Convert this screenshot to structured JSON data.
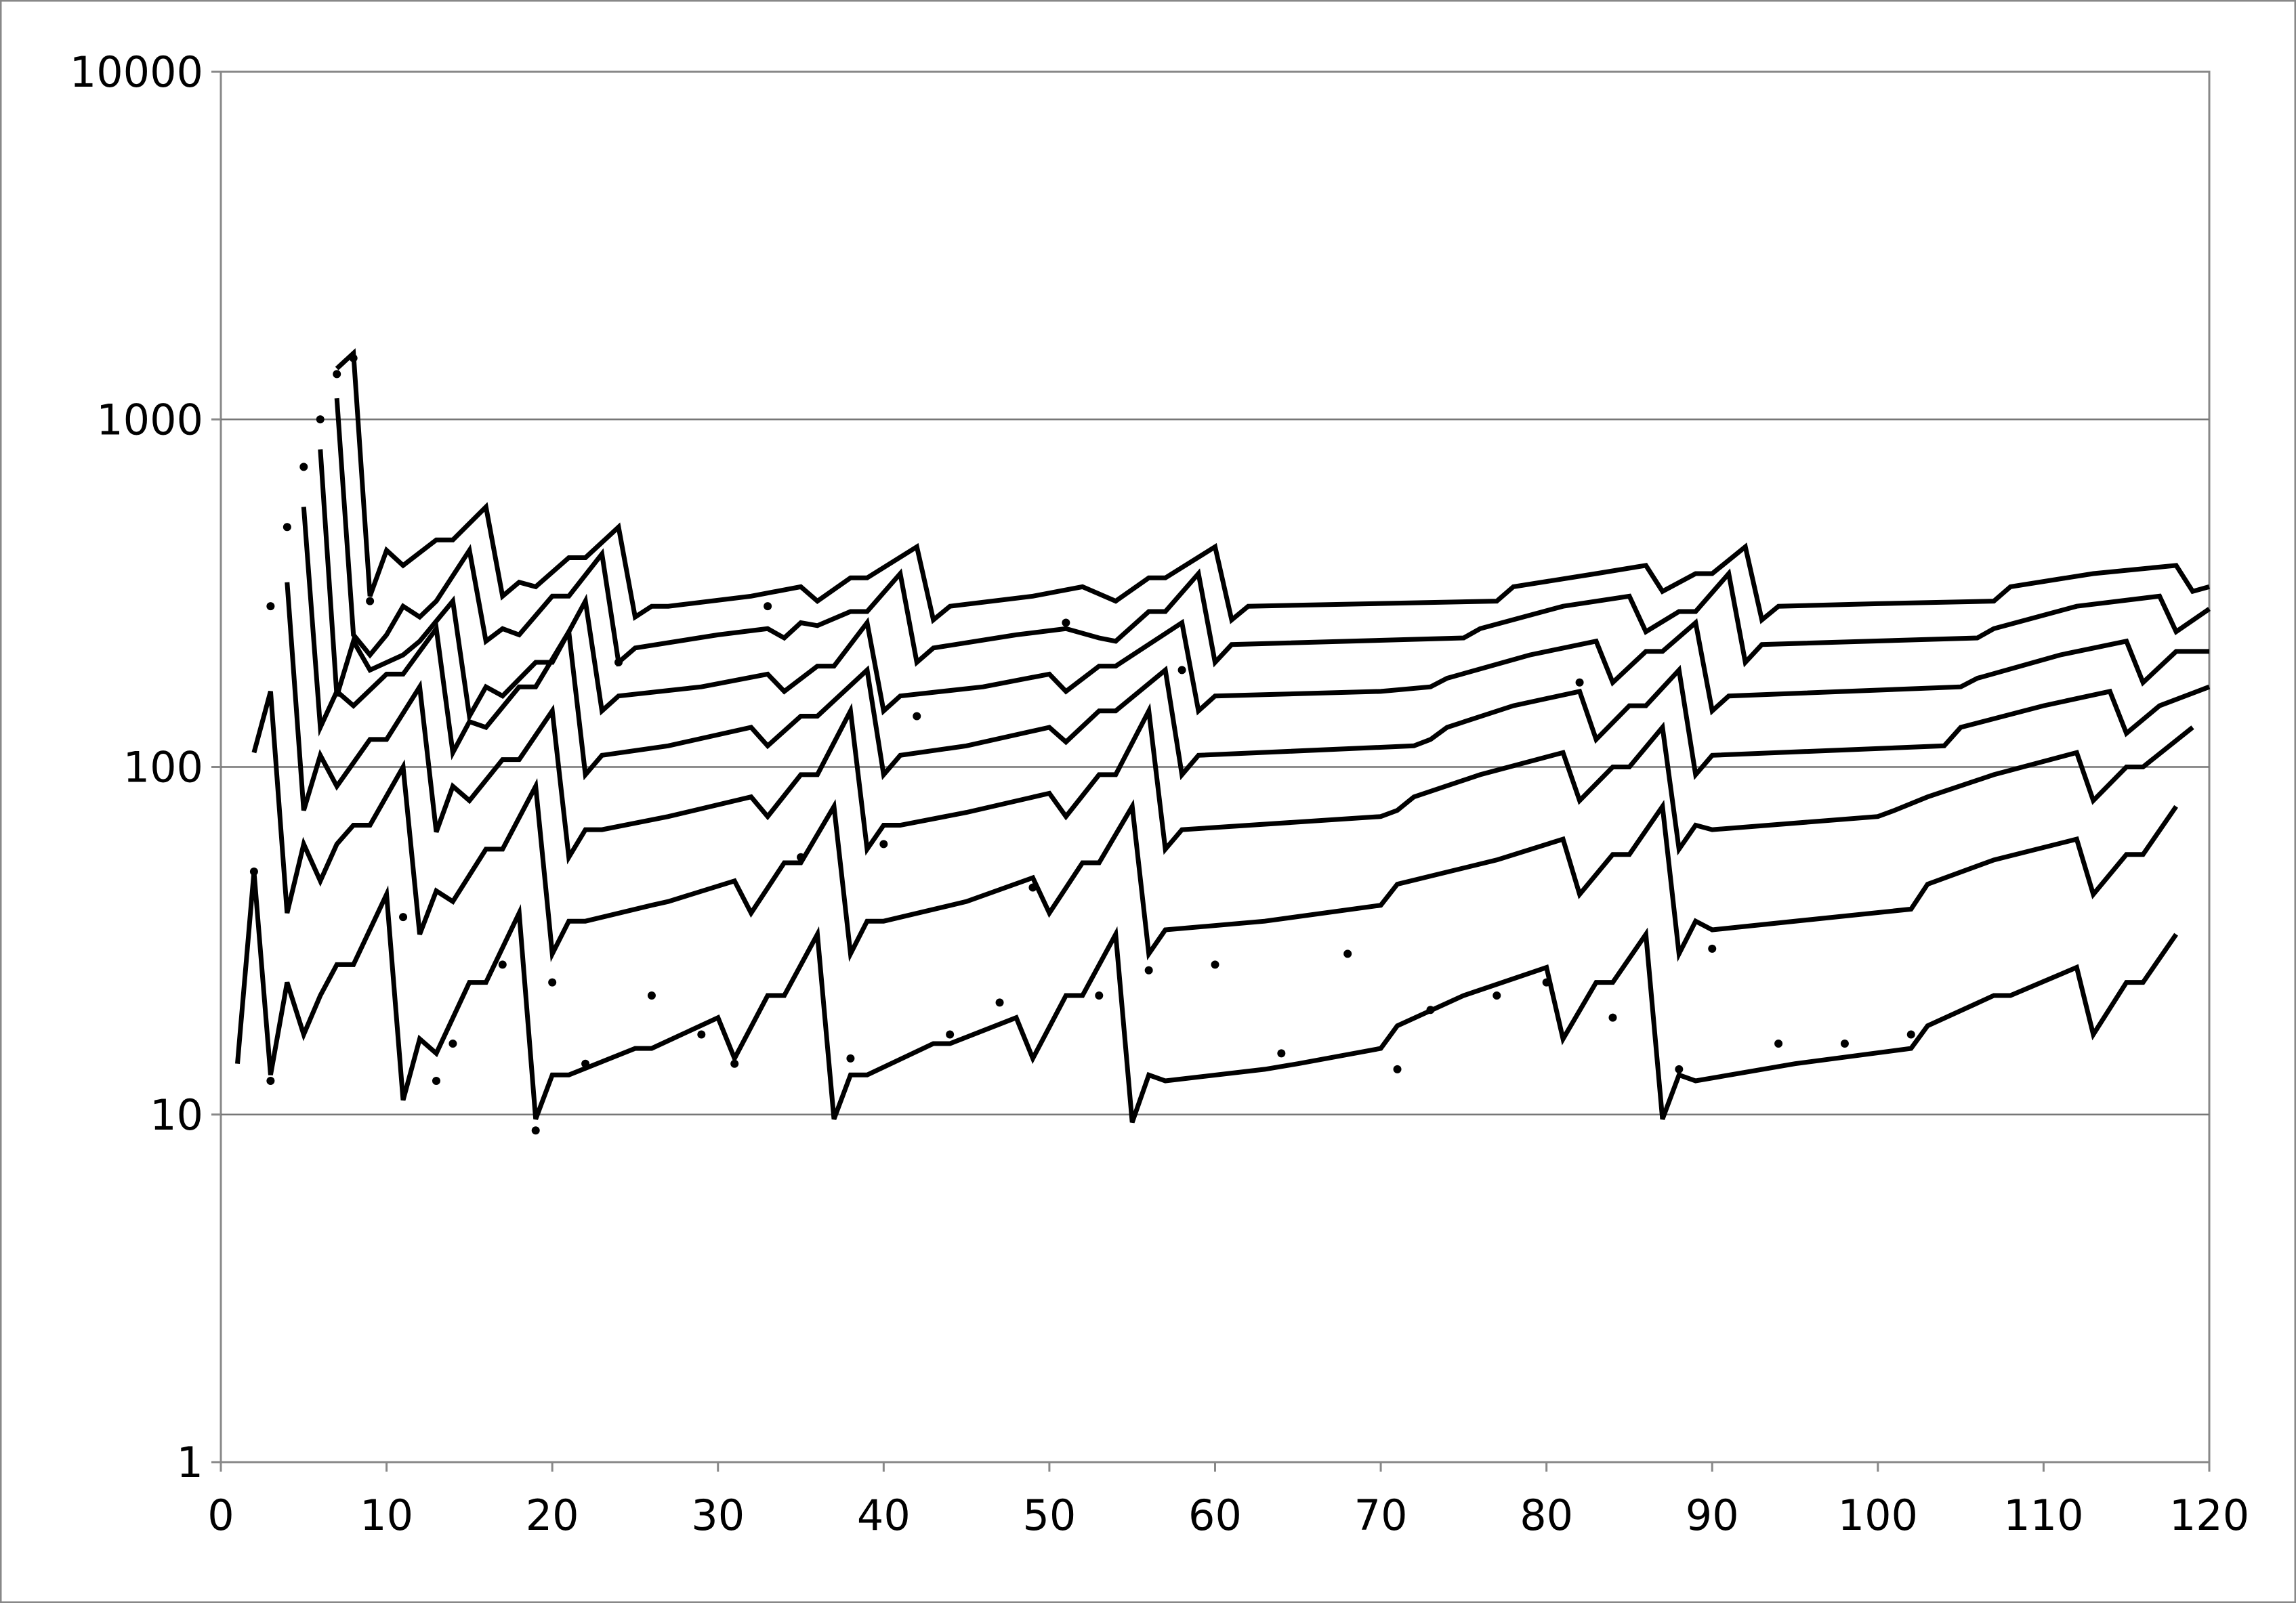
{
  "chart_data": {
    "type": "line",
    "log_y": true,
    "grid": true,
    "xlim": [
      0,
      120
    ],
    "xticks": [
      0,
      10,
      20,
      30,
      40,
      50,
      60,
      70,
      80,
      90,
      100,
      110,
      120
    ],
    "ylim": [
      1,
      10000
    ],
    "yticks": [
      1,
      10,
      100,
      1000,
      10000
    ],
    "series": [
      {
        "color": "#000000",
        "style": "line",
        "x": [
          1,
          2,
          3,
          4,
          5,
          6,
          7,
          8,
          10,
          11,
          12,
          13,
          15,
          16,
          18,
          19,
          20,
          21,
          25,
          26,
          30,
          31,
          33,
          34,
          36,
          37,
          38,
          39,
          43,
          44,
          48,
          49,
          51,
          52,
          54,
          55,
          56,
          57,
          63,
          65,
          70,
          71,
          75,
          80,
          81,
          83,
          84,
          86,
          87,
          88,
          89,
          95,
          102,
          103,
          107,
          108,
          112,
          113,
          115,
          116,
          118
        ],
        "values": [
          14,
          50,
          13,
          24,
          17,
          22,
          27,
          27,
          43,
          11,
          16.5,
          15,
          24,
          24,
          38,
          9.7,
          13,
          13,
          15.5,
          15.5,
          19,
          14.5,
          22,
          22,
          33,
          9.7,
          13,
          13,
          16,
          16,
          19,
          14.5,
          22,
          22,
          33,
          9.5,
          13,
          12.5,
          13.5,
          14,
          15.5,
          18,
          22,
          26.5,
          16.5,
          24,
          24,
          33,
          9.7,
          13,
          12.5,
          14,
          15.5,
          18,
          22,
          22,
          26.5,
          17,
          24,
          24,
          33
        ]
      },
      {
        "color": "#000000",
        "style": "line",
        "x": [
          2,
          3,
          4,
          5,
          6,
          7,
          8,
          9,
          11,
          12,
          13,
          14,
          16,
          17,
          19,
          20,
          21,
          22,
          26,
          27,
          31,
          32,
          34,
          35,
          37,
          38,
          39,
          40,
          45,
          49,
          50,
          52,
          53,
          55,
          56,
          57,
          63,
          70,
          71,
          77,
          81,
          82,
          84,
          85,
          87,
          88,
          89,
          90,
          102,
          103,
          107,
          112,
          113,
          115,
          116,
          118
        ],
        "values": [
          110,
          165,
          38,
          60,
          47,
          60,
          68,
          68,
          100,
          33,
          44,
          41,
          58,
          58,
          88,
          29,
          36,
          36,
          40,
          41,
          47,
          38,
          53,
          53,
          77,
          29,
          36,
          36,
          41,
          48,
          38,
          53,
          53,
          77,
          29,
          34,
          36,
          40,
          46,
          54,
          62,
          43,
          56,
          56,
          77,
          29,
          36,
          34,
          39,
          46,
          54,
          62,
          43,
          56,
          56,
          77
        ]
      },
      {
        "color": "#000000",
        "style": "line",
        "x": [
          4,
          5,
          6,
          7,
          9,
          10,
          12,
          13,
          14,
          15,
          17,
          18,
          20,
          21,
          22,
          23,
          27,
          32,
          33,
          35,
          36,
          38,
          39,
          40,
          41,
          45,
          50,
          51,
          53,
          54,
          56,
          57,
          58,
          70,
          71,
          72,
          76,
          81,
          82,
          84,
          85,
          87,
          88,
          89,
          90,
          100,
          101,
          103,
          107,
          112,
          113,
          115,
          116,
          119
        ],
        "values": [
          340,
          75,
          108,
          88,
          120,
          120,
          170,
          65,
          88,
          80,
          105,
          105,
          145,
          55,
          66,
          66,
          72,
          82,
          72,
          95,
          95,
          145,
          58,
          68,
          68,
          74,
          84,
          72,
          95,
          95,
          145,
          58,
          66,
          72,
          75,
          82,
          95,
          110,
          80,
          100,
          100,
          130,
          58,
          68,
          66,
          72,
          75,
          82,
          95,
          110,
          80,
          100,
          100,
          130
        ]
      },
      {
        "color": "#000000",
        "style": "line",
        "x": [
          5,
          6,
          7,
          8,
          10,
          11,
          13,
          14,
          15,
          16,
          18,
          19,
          21,
          22,
          23,
          27,
          32,
          33,
          35,
          36,
          39,
          40,
          41,
          45,
          50,
          51,
          53,
          54,
          57,
          58,
          59,
          72,
          73,
          74,
          78,
          82,
          83,
          85,
          86,
          88,
          89,
          90,
          104,
          105,
          110,
          114,
          115,
          117,
          120
        ],
        "values": [
          560,
          130,
          165,
          150,
          185,
          185,
          250,
          110,
          135,
          130,
          170,
          170,
          245,
          95,
          108,
          115,
          130,
          115,
          140,
          140,
          190,
          95,
          108,
          115,
          130,
          118,
          145,
          145,
          190,
          95,
          108,
          115,
          120,
          130,
          150,
          165,
          120,
          150,
          150,
          190,
          95,
          108,
          115,
          130,
          150,
          165,
          125,
          150,
          170
        ]
      },
      {
        "color": "#000000",
        "style": "line",
        "x": [
          6,
          7,
          8,
          9,
          11,
          12,
          14,
          15,
          16,
          17,
          19,
          20,
          22,
          23,
          24,
          29,
          33,
          34,
          36,
          37,
          39,
          40,
          41,
          46,
          50,
          51,
          53,
          54,
          58,
          59,
          60,
          70,
          73,
          74,
          79,
          83,
          84,
          86,
          87,
          89,
          90,
          91,
          105,
          106,
          111,
          115,
          116,
          118,
          120
        ],
        "values": [
          820,
          160,
          230,
          190,
          210,
          230,
          300,
          140,
          170,
          160,
          200,
          200,
          300,
          145,
          160,
          170,
          185,
          165,
          195,
          195,
          260,
          145,
          160,
          170,
          185,
          165,
          195,
          195,
          260,
          145,
          160,
          165,
          170,
          180,
          210,
          230,
          175,
          215,
          215,
          260,
          145,
          160,
          170,
          180,
          210,
          230,
          175,
          215,
          215
        ]
      },
      {
        "color": "#000000",
        "style": "line",
        "x": [
          7,
          8,
          9,
          10,
          11,
          12,
          13,
          15,
          16,
          17,
          18,
          20,
          21,
          23,
          24,
          25,
          30,
          33,
          34,
          35,
          36,
          38,
          39,
          41,
          42,
          43,
          48,
          51,
          53,
          54,
          56,
          57,
          59,
          60,
          61,
          75,
          76,
          81,
          85,
          86,
          88,
          89,
          91,
          92,
          93,
          106,
          107,
          112,
          117,
          118,
          120
        ],
        "values": [
          1150,
          240,
          210,
          240,
          290,
          270,
          300,
          420,
          230,
          250,
          240,
          310,
          310,
          410,
          200,
          220,
          240,
          250,
          235,
          260,
          255,
          280,
          280,
          360,
          200,
          220,
          240,
          250,
          235,
          230,
          280,
          280,
          360,
          200,
          225,
          235,
          250,
          290,
          310,
          245,
          280,
          280,
          360,
          200,
          225,
          235,
          250,
          290,
          310,
          245,
          285
        ]
      },
      {
        "color": "#000000",
        "style": "line",
        "x": [
          7,
          8,
          9,
          10,
          11,
          13,
          14,
          16,
          17,
          18,
          19,
          21,
          22,
          24,
          25,
          26,
          27,
          32,
          35,
          36,
          38,
          39,
          42,
          43,
          44,
          49,
          52,
          54,
          56,
          57,
          60,
          61,
          62,
          77,
          78,
          83,
          86,
          87,
          89,
          90,
          92,
          93,
          94,
          100,
          107,
          108,
          113,
          118,
          119,
          120
        ],
        "values": [
          1400,
          1550,
          310,
          420,
          380,
          450,
          450,
          560,
          310,
          340,
          330,
          400,
          400,
          490,
          270,
          290,
          290,
          310,
          330,
          300,
          350,
          350,
          430,
          265,
          290,
          310,
          330,
          300,
          350,
          350,
          430,
          265,
          290,
          300,
          330,
          360,
          380,
          320,
          360,
          360,
          430,
          265,
          290,
          295,
          300,
          330,
          360,
          380,
          320,
          330
        ]
      },
      {
        "color": "#000000",
        "style": "dots",
        "x": [
          2,
          3,
          3,
          4,
          5,
          6,
          7,
          8,
          9,
          11,
          13,
          14,
          17,
          19,
          20,
          22,
          24,
          26,
          29,
          31,
          33,
          35,
          38,
          40,
          42,
          44,
          47,
          49,
          51,
          53,
          56,
          58,
          60,
          64,
          68,
          71,
          73,
          77,
          80,
          82,
          84,
          88,
          90,
          94,
          98,
          102
        ],
        "values": [
          50,
          12.5,
          290,
          490,
          730,
          1000,
          1350,
          1500,
          300,
          37,
          12.5,
          16,
          27,
          9,
          24,
          14,
          200,
          22,
          17,
          14,
          290,
          55,
          14.5,
          60,
          140,
          17,
          21,
          45,
          260,
          22,
          26,
          190,
          27,
          15,
          29,
          13.5,
          20,
          22,
          24,
          175,
          19,
          13.5,
          30,
          16,
          16,
          17
        ]
      }
    ]
  }
}
